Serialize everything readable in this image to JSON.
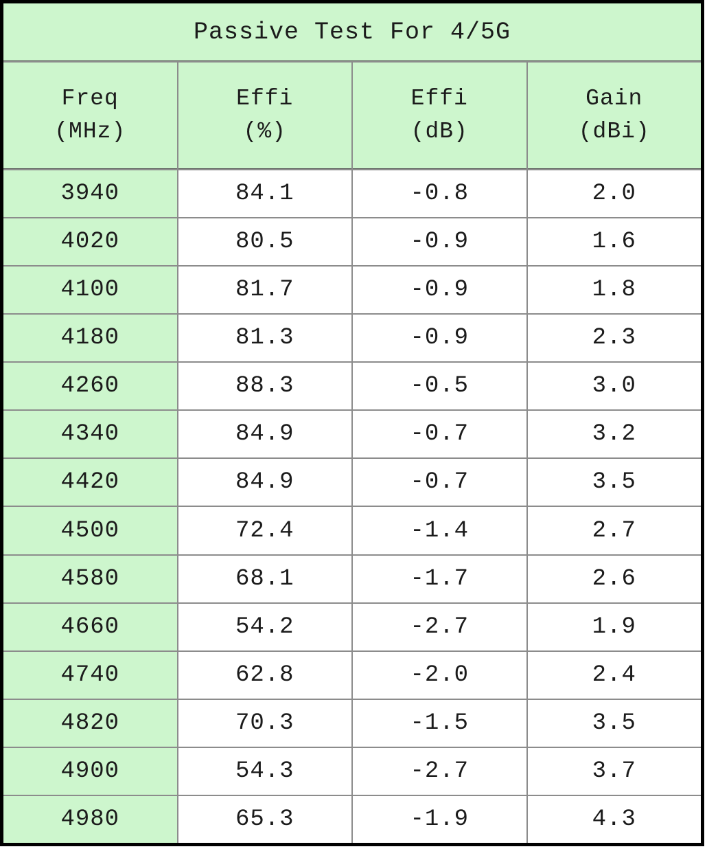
{
  "title": "Passive Test For 4/5G",
  "columns": [
    {
      "label": "Freq",
      "unit": "(MHz)"
    },
    {
      "label": "Effi",
      "unit": "(%)"
    },
    {
      "label": "Effi",
      "unit": "(dB)"
    },
    {
      "label": "Gain",
      "unit": "(dBi)"
    }
  ],
  "rows": [
    [
      "3940",
      "84.1",
      "-0.8",
      "2.0"
    ],
    [
      "4020",
      "80.5",
      "-0.9",
      "1.6"
    ],
    [
      "4100",
      "81.7",
      "-0.9",
      "1.8"
    ],
    [
      "4180",
      "81.3",
      "-0.9",
      "2.3"
    ],
    [
      "4260",
      "88.3",
      "-0.5",
      "3.0"
    ],
    [
      "4340",
      "84.9",
      "-0.7",
      "3.2"
    ],
    [
      "4420",
      "84.9",
      "-0.7",
      "3.5"
    ],
    [
      "4500",
      "72.4",
      "-1.4",
      "2.7"
    ],
    [
      "4580",
      "68.1",
      "-1.7",
      "2.6"
    ],
    [
      "4660",
      "54.2",
      "-2.7",
      "1.9"
    ],
    [
      "4740",
      "62.8",
      "-2.0",
      "2.4"
    ],
    [
      "4820",
      "70.3",
      "-1.5",
      "3.5"
    ],
    [
      "4900",
      "54.3",
      "-2.7",
      "3.7"
    ],
    [
      "4980",
      "65.3",
      "-1.9",
      "4.3"
    ]
  ],
  "colors": {
    "cell_green": "#cdf6cd",
    "grid_line": "#8c8c8c",
    "outer_border": "#000000",
    "text": "#1b1b1b"
  },
  "chart_data": {
    "type": "table",
    "title": "Passive Test For 4/5G",
    "columns": [
      "Freq (MHz)",
      "Effi (%)",
      "Effi (dB)",
      "Gain (dBi)"
    ],
    "rows": [
      [
        3940,
        84.1,
        -0.8,
        2.0
      ],
      [
        4020,
        80.5,
        -0.9,
        1.6
      ],
      [
        4100,
        81.7,
        -0.9,
        1.8
      ],
      [
        4180,
        81.3,
        -0.9,
        2.3
      ],
      [
        4260,
        88.3,
        -0.5,
        3.0
      ],
      [
        4340,
        84.9,
        -0.7,
        3.2
      ],
      [
        4420,
        84.9,
        -0.7,
        3.5
      ],
      [
        4500,
        72.4,
        -1.4,
        2.7
      ],
      [
        4580,
        68.1,
        -1.7,
        2.6
      ],
      [
        4660,
        54.2,
        -2.7,
        1.9
      ],
      [
        4740,
        62.8,
        -2.0,
        2.4
      ],
      [
        4820,
        70.3,
        -1.5,
        3.5
      ],
      [
        4900,
        54.3,
        -2.7,
        3.7
      ],
      [
        4980,
        65.3,
        -1.9,
        4.3
      ]
    ]
  }
}
